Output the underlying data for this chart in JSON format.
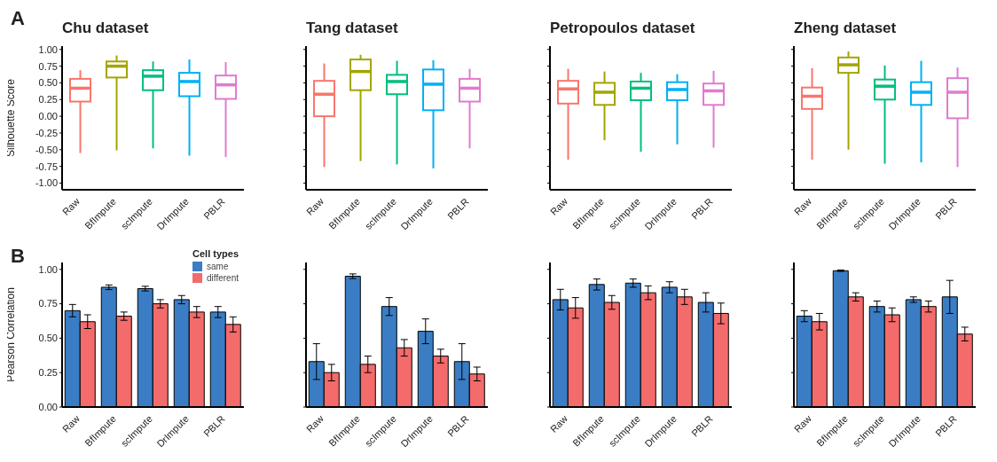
{
  "chart_data": [
    {
      "type": "box",
      "title": "Chu dataset",
      "ylabel": "Silhouette Score",
      "annotations": [
        "A"
      ],
      "categories": [
        "Raw",
        "BfImpute",
        "scImpute",
        "DrImpute",
        "PBLR"
      ],
      "colors": [
        "#f8766d",
        "#a3a500",
        "#00bf7d",
        "#00b0f6",
        "#e07bd0"
      ],
      "ylim": [
        -1.1,
        1.05
      ],
      "yticks": [
        {
          "value": -1,
          "label": "-1.00"
        },
        {
          "value": -0.75,
          "label": "-0.75"
        },
        {
          "value": -0.5,
          "label": "-0.50"
        },
        {
          "value": -0.25,
          "label": "-0.25"
        },
        {
          "value": 0,
          "label": "0.00"
        },
        {
          "value": 0.25,
          "label": "0.25"
        },
        {
          "value": 0.5,
          "label": "0.50"
        },
        {
          "value": 0.75,
          "label": "0.75"
        },
        {
          "value": 1,
          "label": "1.00"
        }
      ],
      "boxes": [
        {
          "low": -0.55,
          "q1": 0.22,
          "median": 0.42,
          "q3": 0.56,
          "high": 0.69
        },
        {
          "low": -0.51,
          "q1": 0.58,
          "median": 0.75,
          "q3": 0.82,
          "high": 0.91
        },
        {
          "low": -0.48,
          "q1": 0.39,
          "median": 0.6,
          "q3": 0.69,
          "high": 0.82
        },
        {
          "low": -0.59,
          "q1": 0.3,
          "median": 0.52,
          "q3": 0.65,
          "high": 0.85
        },
        {
          "low": -0.61,
          "q1": 0.26,
          "median": 0.47,
          "q3": 0.61,
          "high": 0.81
        }
      ]
    },
    {
      "type": "box",
      "title": "Tang dataset",
      "tick_labels": "x",
      "categories": [
        "Raw",
        "BfImpute",
        "scImpute",
        "DrImpute",
        "PBLR"
      ],
      "colors": [
        "#f8766d",
        "#a3a500",
        "#00bf7d",
        "#00b0f6",
        "#e07bd0"
      ],
      "ylim": [
        -1.1,
        1.05
      ],
      "yticks": [
        {
          "value": -1,
          "label": null
        },
        {
          "value": -0.75,
          "label": null
        },
        {
          "value": -0.5,
          "label": null
        },
        {
          "value": -0.25,
          "label": null
        },
        {
          "value": 0,
          "label": null
        },
        {
          "value": 0.25,
          "label": null
        },
        {
          "value": 0.5,
          "label": null
        },
        {
          "value": 0.75,
          "label": null
        },
        {
          "value": 1,
          "label": null
        }
      ],
      "boxes": [
        {
          "low": -0.76,
          "q1": 0.0,
          "median": 0.33,
          "q3": 0.53,
          "high": 0.79
        },
        {
          "low": -0.67,
          "q1": 0.39,
          "median": 0.67,
          "q3": 0.85,
          "high": 0.92
        },
        {
          "low": -0.72,
          "q1": 0.33,
          "median": 0.52,
          "q3": 0.62,
          "high": 0.83
        },
        {
          "low": -0.78,
          "q1": 0.09,
          "median": 0.48,
          "q3": 0.7,
          "high": 0.84
        },
        {
          "low": -0.48,
          "q1": 0.22,
          "median": 0.42,
          "q3": 0.56,
          "high": 0.71
        }
      ]
    },
    {
      "type": "box",
      "title": "Petropoulos dataset",
      "tick_labels": "x",
      "categories": [
        "Raw",
        "BfImpute",
        "scImpute",
        "DrImpute",
        "PBLR"
      ],
      "colors": [
        "#f8766d",
        "#a3a500",
        "#00bf7d",
        "#00b0f6",
        "#e07bd0"
      ],
      "ylim": [
        -1.1,
        1.05
      ],
      "yticks": [
        {
          "value": -1,
          "label": null
        },
        {
          "value": -0.75,
          "label": null
        },
        {
          "value": -0.5,
          "label": null
        },
        {
          "value": -0.25,
          "label": null
        },
        {
          "value": 0,
          "label": null
        },
        {
          "value": 0.25,
          "label": null
        },
        {
          "value": 0.5,
          "label": null
        },
        {
          "value": 0.75,
          "label": null
        },
        {
          "value": 1,
          "label": null
        }
      ],
      "boxes": [
        {
          "low": -0.65,
          "q1": 0.19,
          "median": 0.41,
          "q3": 0.53,
          "high": 0.71
        },
        {
          "low": -0.36,
          "q1": 0.17,
          "median": 0.36,
          "q3": 0.5,
          "high": 0.67
        },
        {
          "low": -0.53,
          "q1": 0.24,
          "median": 0.42,
          "q3": 0.52,
          "high": 0.65
        },
        {
          "low": -0.42,
          "q1": 0.24,
          "median": 0.4,
          "q3": 0.51,
          "high": 0.63
        },
        {
          "low": -0.47,
          "q1": 0.17,
          "median": 0.38,
          "q3": 0.49,
          "high": 0.68
        }
      ]
    },
    {
      "type": "box",
      "title": "Zheng dataset",
      "tick_labels": "x",
      "categories": [
        "Raw",
        "BfImpute",
        "scImpute",
        "DrImpute",
        "PBLR"
      ],
      "colors": [
        "#f8766d",
        "#a3a500",
        "#00bf7d",
        "#00b0f6",
        "#e07bd0"
      ],
      "ylim": [
        -1.1,
        1.05
      ],
      "yticks": [
        {
          "value": -1,
          "label": null
        },
        {
          "value": -0.75,
          "label": null
        },
        {
          "value": -0.5,
          "label": null
        },
        {
          "value": -0.25,
          "label": null
        },
        {
          "value": 0,
          "label": null
        },
        {
          "value": 0.25,
          "label": null
        },
        {
          "value": 0.5,
          "label": null
        },
        {
          "value": 0.75,
          "label": null
        },
        {
          "value": 1,
          "label": null
        }
      ],
      "boxes": [
        {
          "low": -0.65,
          "q1": 0.11,
          "median": 0.3,
          "q3": 0.43,
          "high": 0.72
        },
        {
          "low": -0.5,
          "q1": 0.65,
          "median": 0.77,
          "q3": 0.88,
          "high": 0.97
        },
        {
          "low": -0.71,
          "q1": 0.25,
          "median": 0.45,
          "q3": 0.55,
          "high": 0.76
        },
        {
          "low": -0.69,
          "q1": 0.17,
          "median": 0.36,
          "q3": 0.51,
          "high": 0.83
        },
        {
          "low": -0.76,
          "q1": -0.03,
          "median": 0.36,
          "q3": 0.57,
          "high": 0.73
        }
      ]
    },
    {
      "type": "bar",
      "ylabel": "Pearson Correlation",
      "annotations": [
        "B"
      ],
      "legend_title": "Cell types",
      "legend": "top right",
      "categories": [
        "Raw",
        "BfImpute",
        "scImpute",
        "DrImpute",
        "PBLR"
      ],
      "ylim": [
        0,
        1.05
      ],
      "yticks": [
        {
          "value": 0,
          "label": "0.00"
        },
        {
          "value": 0.25,
          "label": "0.25"
        },
        {
          "value": 0.5,
          "label": "0.50"
        },
        {
          "value": 0.75,
          "label": "0.75"
        },
        {
          "value": 1,
          "label": "1.00"
        }
      ],
      "series": [
        {
          "name": "same",
          "color": "#3a7dc4",
          "values": [
            0.7,
            0.87,
            0.86,
            0.78,
            0.69
          ],
          "errors": [
            0.045,
            0.017,
            0.017,
            0.03,
            0.04
          ]
        },
        {
          "name": "different",
          "color": "#f36b6b",
          "values": [
            0.62,
            0.66,
            0.75,
            0.69,
            0.6
          ],
          "errors": [
            0.05,
            0.03,
            0.03,
            0.04,
            0.055
          ]
        }
      ]
    },
    {
      "type": "bar",
      "tick_labels": "x",
      "categories": [
        "Raw",
        "BfImpute",
        "scImpute",
        "DrImpute",
        "PBLR"
      ],
      "ylim": [
        0,
        1.05
      ],
      "yticks": [
        {
          "value": 0,
          "label": null
        },
        {
          "value": 0.25,
          "label": null
        },
        {
          "value": 0.5,
          "label": null
        },
        {
          "value": 0.75,
          "label": null
        },
        {
          "value": 1,
          "label": null
        }
      ],
      "series": [
        {
          "color": "#3a7dc4",
          "values": [
            0.33,
            0.95,
            0.73,
            0.55,
            0.33
          ],
          "errors": [
            0.13,
            0.017,
            0.065,
            0.09,
            0.13
          ]
        },
        {
          "color": "#f36b6b",
          "values": [
            0.25,
            0.31,
            0.43,
            0.37,
            0.24
          ],
          "errors": [
            0.06,
            0.06,
            0.06,
            0.05,
            0.05
          ]
        }
      ]
    },
    {
      "type": "bar",
      "tick_labels": "x",
      "categories": [
        "Raw",
        "BfImpute",
        "scImpute",
        "DrImpute",
        "PBLR"
      ],
      "ylim": [
        0,
        1.05
      ],
      "yticks": [
        {
          "value": 0,
          "label": null
        },
        {
          "value": 0.25,
          "label": null
        },
        {
          "value": 0.5,
          "label": null
        },
        {
          "value": 0.75,
          "label": null
        },
        {
          "value": 1,
          "label": null
        }
      ],
      "series": [
        {
          "color": "#3a7dc4",
          "values": [
            0.78,
            0.89,
            0.9,
            0.87,
            0.76
          ],
          "errors": [
            0.075,
            0.04,
            0.03,
            0.04,
            0.07
          ]
        },
        {
          "color": "#f36b6b",
          "values": [
            0.72,
            0.76,
            0.83,
            0.8,
            0.68
          ],
          "errors": [
            0.075,
            0.05,
            0.05,
            0.055,
            0.075
          ]
        }
      ]
    },
    {
      "type": "bar",
      "tick_labels": "x",
      "categories": [
        "Raw",
        "BfImpute",
        "scImpute",
        "DrImpute",
        "PBLR"
      ],
      "ylim": [
        0,
        1.05
      ],
      "yticks": [
        {
          "value": 0,
          "label": null
        },
        {
          "value": 0.25,
          "label": null
        },
        {
          "value": 0.5,
          "label": null
        },
        {
          "value": 0.75,
          "label": null
        },
        {
          "value": 1,
          "label": null
        }
      ],
      "series": [
        {
          "color": "#3a7dc4",
          "values": [
            0.66,
            0.99,
            0.73,
            0.78,
            0.8
          ],
          "errors": [
            0.04,
            0.005,
            0.04,
            0.02,
            0.12
          ]
        },
        {
          "color": "#f36b6b",
          "values": [
            0.62,
            0.8,
            0.67,
            0.73,
            0.53
          ],
          "errors": [
            0.06,
            0.03,
            0.05,
            0.04,
            0.05
          ]
        }
      ]
    }
  ]
}
